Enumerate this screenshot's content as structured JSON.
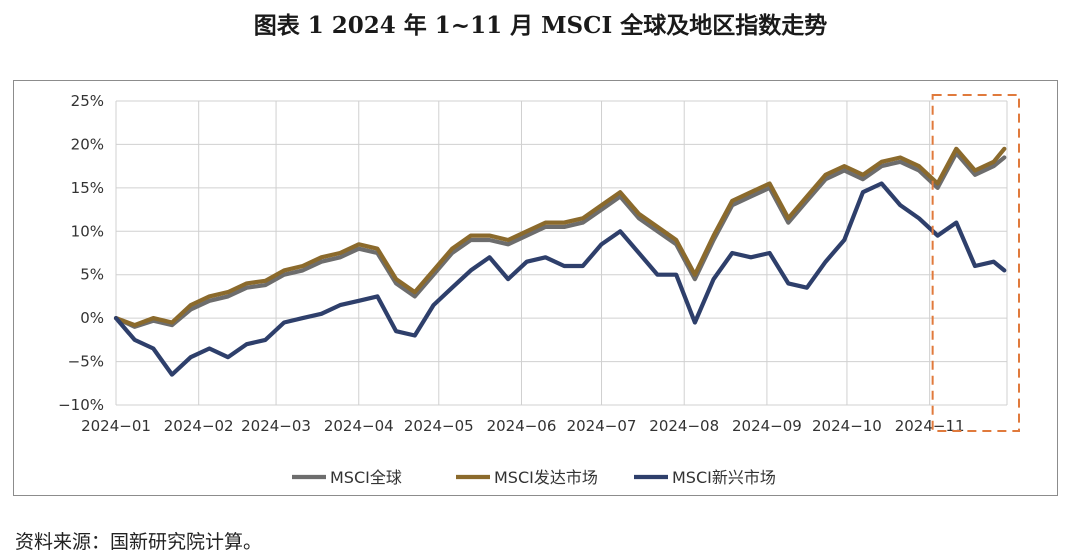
{
  "title": "图表 1  2024 年 1~11 月 MSCI 全球及地区指数走势",
  "source": "资料来源：国新研究院计算。",
  "chart_data": {
    "type": "line",
    "xlabel": "",
    "ylabel": "",
    "ylim": [
      -10,
      25
    ],
    "y_ticks": [
      -10,
      -5,
      0,
      5,
      10,
      15,
      20,
      25
    ],
    "y_tick_labels": [
      "−10%",
      "−5%",
      "0%",
      "5%",
      "10%",
      "15%",
      "20%",
      "25%"
    ],
    "x_tick_labels": [
      "2024−01",
      "2024−02",
      "2024−03",
      "2024−04",
      "2024−05",
      "2024−06",
      "2024−07",
      "2024−08",
      "2024−09",
      "2024−10",
      "2024−11"
    ],
    "grid": true,
    "legend_position": "bottom",
    "colors": {
      "MSCI全球": "#6d6d6d",
      "MSCI发达市场": "#8b6a2c",
      "MSCI新兴市场": "#2e3f6b",
      "highlight_box": "#e07a3c"
    },
    "highlight_range": [
      "2024-11-01",
      "2024-11-30"
    ],
    "x": [
      "2024-01-01",
      "2024-01-08",
      "2024-01-15",
      "2024-01-22",
      "2024-01-29",
      "2024-02-05",
      "2024-02-12",
      "2024-02-19",
      "2024-02-26",
      "2024-03-04",
      "2024-03-11",
      "2024-03-18",
      "2024-03-25",
      "2024-04-01",
      "2024-04-08",
      "2024-04-15",
      "2024-04-22",
      "2024-04-29",
      "2024-05-06",
      "2024-05-13",
      "2024-05-20",
      "2024-05-27",
      "2024-06-03",
      "2024-06-10",
      "2024-06-17",
      "2024-06-24",
      "2024-07-01",
      "2024-07-08",
      "2024-07-15",
      "2024-07-22",
      "2024-07-29",
      "2024-08-05",
      "2024-08-12",
      "2024-08-19",
      "2024-08-26",
      "2024-09-02",
      "2024-09-09",
      "2024-09-16",
      "2024-09-23",
      "2024-09-30",
      "2024-10-07",
      "2024-10-14",
      "2024-10-21",
      "2024-10-28",
      "2024-11-04",
      "2024-11-11",
      "2024-11-18",
      "2024-11-25",
      "2024-11-29"
    ],
    "series": [
      {
        "name": "MSCI全球",
        "values": [
          0,
          -1.0,
          -0.3,
          -0.8,
          1.0,
          2.0,
          2.5,
          3.5,
          3.8,
          5.0,
          5.5,
          6.5,
          7.0,
          8.0,
          7.5,
          4.0,
          2.5,
          5.0,
          7.5,
          9.0,
          9.0,
          8.5,
          9.5,
          10.5,
          10.5,
          11.0,
          12.5,
          14.0,
          11.5,
          10.0,
          8.5,
          4.5,
          9.0,
          13.0,
          14.0,
          15.0,
          11.0,
          13.5,
          16.0,
          17.0,
          16.0,
          17.5,
          18.0,
          17.0,
          15.0,
          19.0,
          16.5,
          17.5,
          18.5
        ]
      },
      {
        "name": "MSCI发达市场",
        "values": [
          0,
          -0.8,
          0,
          -0.5,
          1.5,
          2.5,
          3.0,
          4.0,
          4.3,
          5.5,
          6.0,
          7.0,
          7.5,
          8.5,
          8.0,
          4.5,
          3.0,
          5.5,
          8.0,
          9.5,
          9.5,
          9.0,
          10.0,
          11.0,
          11.0,
          11.5,
          13.0,
          14.5,
          12.0,
          10.5,
          9.0,
          5.0,
          9.5,
          13.5,
          14.5,
          15.5,
          11.5,
          14.0,
          16.5,
          17.5,
          16.5,
          18.0,
          18.5,
          17.5,
          15.5,
          19.5,
          17.0,
          18.0,
          19.5
        ]
      },
      {
        "name": "MSCI新兴市场",
        "values": [
          0,
          -2.5,
          -3.5,
          -6.5,
          -4.5,
          -3.5,
          -4.5,
          -3.0,
          -2.5,
          -0.5,
          0,
          0.5,
          1.5,
          2.0,
          2.5,
          -1.5,
          -2.0,
          1.5,
          3.5,
          5.5,
          7.0,
          4.5,
          6.5,
          7.0,
          6.0,
          6.0,
          8.5,
          10.0,
          7.5,
          5.0,
          5.0,
          -0.5,
          4.5,
          7.5,
          7.0,
          7.5,
          4.0,
          3.5,
          6.5,
          9.0,
          14.5,
          15.5,
          13.0,
          11.5,
          9.5,
          11.0,
          6.0,
          6.5,
          5.5
        ]
      }
    ]
  }
}
